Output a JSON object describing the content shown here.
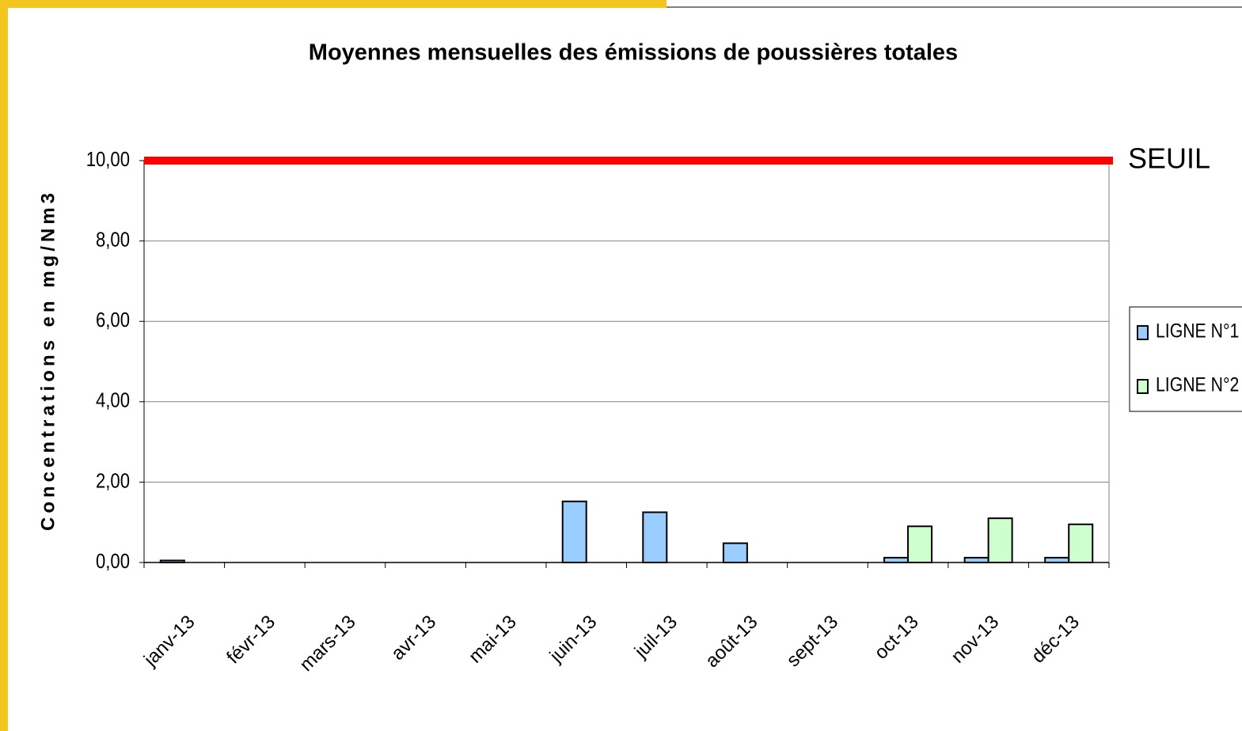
{
  "chart_data": {
    "type": "bar",
    "title": "Moyennes mensuelles des émissions de poussières totales",
    "y_label": "Concentrations en mg/Nm3",
    "categories": [
      "janv-13",
      "févr-13",
      "mars-13",
      "avr-13",
      "mai-13",
      "juin-13",
      "juil-13",
      "août-13",
      "sept-13",
      "oct-13",
      "nov-13",
      "déc-13"
    ],
    "series": [
      {
        "name": "LIGNE N°1",
        "color": "#99ccff",
        "values": [
          0.05,
          null,
          null,
          null,
          null,
          1.52,
          1.25,
          0.48,
          null,
          0.12,
          0.12,
          0.12
        ]
      },
      {
        "name": "LIGNE N°2",
        "color": "#ccffcc",
        "values": [
          null,
          null,
          null,
          null,
          null,
          null,
          null,
          null,
          null,
          0.9,
          1.1,
          0.95
        ]
      }
    ],
    "ylim": [
      0,
      10
    ],
    "yticks": [
      {
        "value": 0,
        "label": "0,00"
      },
      {
        "value": 2,
        "label": "2,00"
      },
      {
        "value": 4,
        "label": "4,00"
      },
      {
        "value": 6,
        "label": "6,00"
      },
      {
        "value": 8,
        "label": "8,00"
      },
      {
        "value": 10,
        "label": "10,00"
      }
    ],
    "grid": true,
    "threshold": {
      "value": 10,
      "label": "SEUIL",
      "color": "#ff0000"
    },
    "legend": "right"
  }
}
